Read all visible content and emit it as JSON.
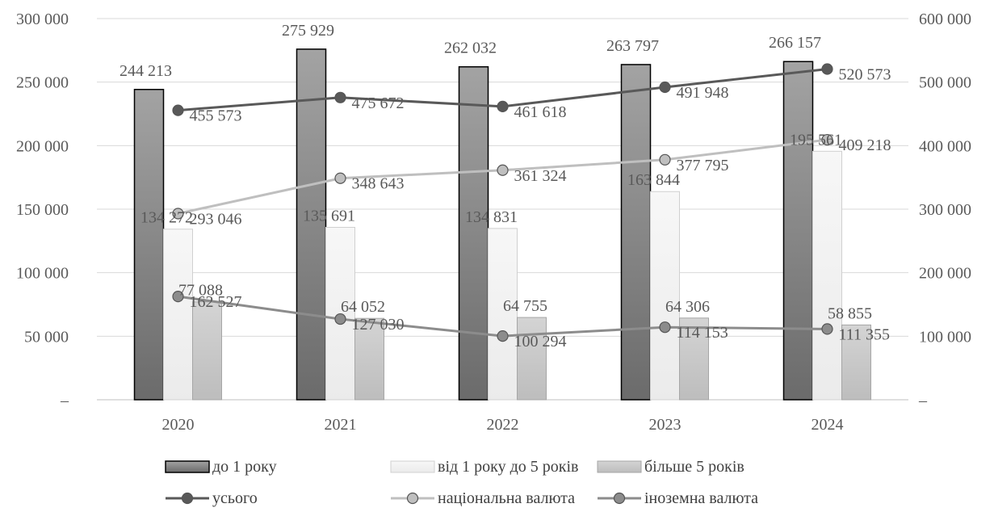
{
  "chart_data": {
    "type": "bar",
    "categories": [
      "2020",
      "2021",
      "2022",
      "2023",
      "2024"
    ],
    "ylim_left": [
      0,
      300000
    ],
    "ylim_right": [
      0,
      600000
    ],
    "left_ticks": [
      "–",
      "50 000",
      "100 000",
      "150 000",
      "200 000",
      "250 000",
      "300 000"
    ],
    "right_ticks": [
      "–",
      "100 000",
      "200 000",
      "300 000",
      "400 000",
      "500 000",
      "600 000"
    ],
    "grid": true,
    "legend_position": "bottom",
    "bar_series": [
      {
        "name": "до 1 року",
        "axis": "left",
        "color": "#7f7f7f",
        "values": [
          244213,
          275929,
          262032,
          263797,
          266157
        ],
        "labels": [
          "244 213",
          "275 929",
          "262 032",
          "263 797",
          "266 157"
        ]
      },
      {
        "name": "від  1 року до 5 років",
        "axis": "left",
        "color": "#f2f2f2",
        "values": [
          134272,
          135691,
          134831,
          163844,
          195561
        ],
        "labels": [
          "134 272",
          "135 691",
          "134 831",
          "163 844",
          "195 561"
        ]
      },
      {
        "name": "більше 5 років",
        "axis": "left",
        "color": "#c8c8c8",
        "values": [
          77088,
          64052,
          64755,
          64306,
          58855
        ],
        "labels": [
          "77 088",
          "64 052",
          "64 755",
          "64 306",
          "58 855"
        ]
      }
    ],
    "line_series": [
      {
        "name": "усього",
        "axis": "right",
        "color": "#595959",
        "values": [
          455573,
          475672,
          461618,
          491948,
          520573
        ],
        "labels": [
          "455 573",
          "475 672",
          "461 618",
          "491 948",
          "520 573"
        ]
      },
      {
        "name": "національна валюта",
        "axis": "right",
        "color": "#bfbfbf",
        "values": [
          293046,
          348643,
          361324,
          377795,
          409218
        ],
        "labels": [
          "293 046",
          "348 643",
          "361 324",
          "377 795",
          "409 218"
        ]
      },
      {
        "name": "іноземна валюта",
        "axis": "right",
        "color": "#8c8c8c",
        "values": [
          162527,
          127030,
          100294,
          114153,
          111355
        ],
        "labels": [
          "162 527",
          "127 030",
          "100 294",
          "114 153",
          "111 355"
        ]
      }
    ]
  }
}
